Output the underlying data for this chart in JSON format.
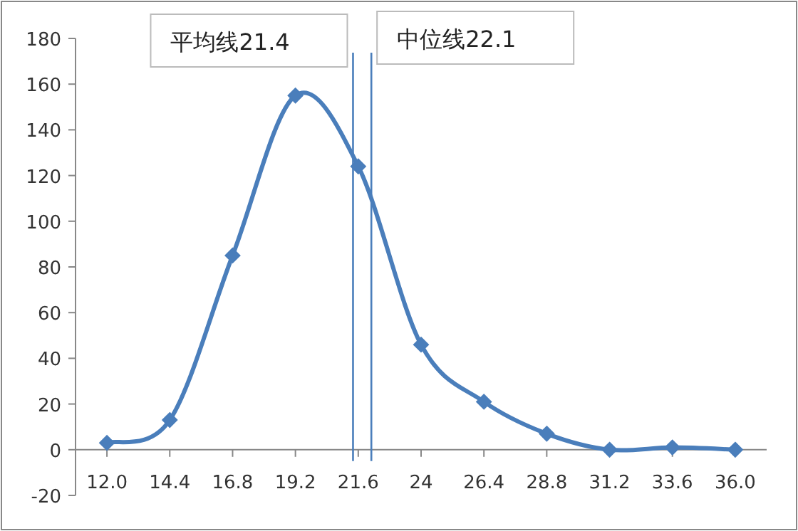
{
  "chart_data": {
    "type": "line",
    "x": [
      12.0,
      14.4,
      16.8,
      19.2,
      21.6,
      24,
      26.4,
      28.8,
      31.2,
      33.6,
      36.0
    ],
    "xlim": [
      10.8,
      37.2
    ],
    "xticks": [
      {
        "value": 12,
        "label": "12.0"
      },
      14.4,
      16.8,
      19.2,
      21.6,
      24,
      26.4,
      28.8,
      31.2,
      33.6,
      {
        "value": 36,
        "label": "36.0"
      }
    ],
    "ylim": [
      -20,
      180
    ],
    "yticks": [
      -20,
      0,
      20,
      40,
      60,
      80,
      100,
      120,
      140,
      160,
      180
    ],
    "series": [
      {
        "color": "#4a7ebb",
        "values": [
          3,
          13,
          85,
          155,
          124,
          46,
          21,
          7,
          0,
          1,
          0
        ]
      }
    ],
    "marker": "diamond",
    "line_style": "solid",
    "grid": false,
    "ref_lines": [
      {
        "axis": "x",
        "value": 21.4,
        "label": "平均线21.4",
        "color": "#4a7ebb"
      },
      {
        "axis": "x",
        "value": 22.1,
        "label": "中位线22.1",
        "color": "#4a7ebb"
      }
    ]
  }
}
